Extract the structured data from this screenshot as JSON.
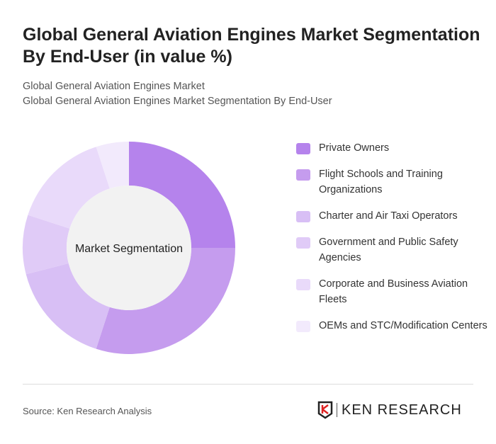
{
  "title": "Global General Aviation Engines Market Segmentation By End-User (in value %)",
  "subtitle1": "Global General Aviation Engines Market",
  "subtitle2": "Global General Aviation Engines Market Segmentation By End-User",
  "source": "Source: Ken Research Analysis",
  "logo": "KEN RESEARCH",
  "chart_data": {
    "type": "pie",
    "center_label": "Market Segmentation",
    "categories": [
      "Private Owners",
      "Flight Schools and Training Organizations",
      "Charter and Air Taxi Operators",
      "Government and Public Safety Agencies",
      "Corporate and Business Aviation Fleets",
      "OEMs and STC/Modification Centers"
    ],
    "values": [
      25,
      30,
      16,
      9,
      15,
      5
    ],
    "colors": [
      "#b583ec",
      "#c59cee",
      "#d8bff5",
      "#e0cbf7",
      "#e9dafa",
      "#f2eafc"
    ],
    "legend_position": "right"
  }
}
